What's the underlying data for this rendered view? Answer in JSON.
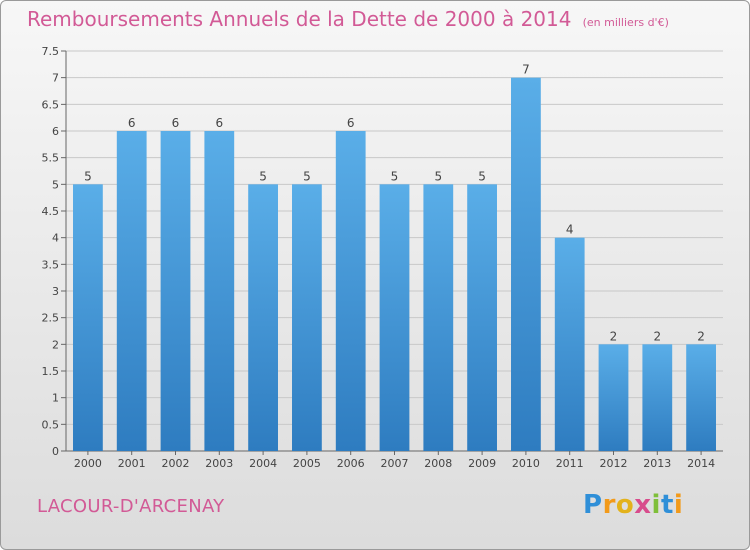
{
  "header": {
    "title": "Remboursements Annuels de la Dette de 2000 à 2014",
    "unit": "(en milliers d'€)"
  },
  "footer": {
    "commune": "LACOUR-D'ARCENAY",
    "brand": "Proxiti"
  },
  "colors": {
    "title": "#d25a96",
    "bar_top": "#5aaee8",
    "bar_bottom": "#2e7cc0",
    "grid": "#c8c8c8"
  },
  "chart_data": {
    "type": "bar",
    "title": "Remboursements Annuels de la Dette de 2000 à 2014",
    "subtitle": "(en milliers d'€)",
    "xlabel": "",
    "ylabel": "",
    "categories": [
      "2000",
      "2001",
      "2002",
      "2003",
      "2004",
      "2005",
      "2006",
      "2007",
      "2008",
      "2009",
      "2010",
      "2011",
      "2012",
      "2013",
      "2014"
    ],
    "values": [
      5,
      6,
      6,
      6,
      5,
      5,
      6,
      5,
      5,
      5,
      7,
      4,
      2,
      2,
      2
    ],
    "data_labels": [
      "5",
      "6",
      "6",
      "6",
      "5",
      "5",
      "6",
      "5",
      "5",
      "5",
      "7",
      "4",
      "2",
      "2",
      "2"
    ],
    "yticks": [
      "0",
      "0.5",
      "1",
      "1.5",
      "2",
      "2.5",
      "3",
      "3.5",
      "4",
      "4.5",
      "5",
      "5.5",
      "6",
      "6.5",
      "7",
      "7.5"
    ],
    "ylim": [
      0,
      7.5
    ],
    "grid": true,
    "legend": "none"
  }
}
